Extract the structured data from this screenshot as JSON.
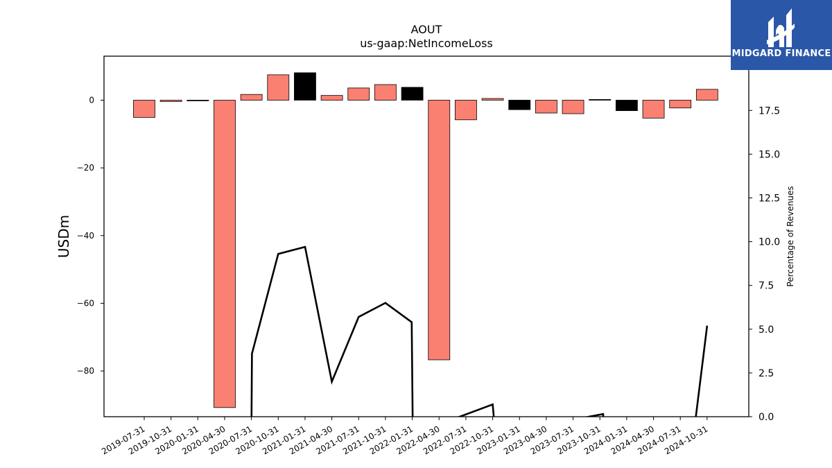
{
  "chart_data": {
    "type": "bar",
    "title": "AOUT",
    "subtitle": "us-gaap:NetIncomeLoss",
    "ylabel": "USDm",
    "ylabel_right": "Percentage of Revenues",
    "ylim": [
      -93.5,
      13
    ],
    "ylim_right": [
      0,
      20.6
    ],
    "yticks": [
      0,
      -20,
      -40,
      -60,
      -80
    ],
    "yticks_right": [
      "0.0",
      "2.5",
      "5.0",
      "7.5",
      "10.0",
      "12.5",
      "15.0",
      "17.5",
      "20.0"
    ],
    "categories": [
      "2019-07-31",
      "2019-10-31",
      "2020-01-31",
      "2020-04-30",
      "2020-07-31",
      "2020-10-31",
      "2021-01-31",
      "2021-04-30",
      "2021-07-31",
      "2021-10-31",
      "2022-01-31",
      "2022-04-30",
      "2022-07-31",
      "2022-10-31",
      "2023-01-31",
      "2023-04-30",
      "2023-07-31",
      "2023-10-31",
      "2024-01-31",
      "2024-04-30",
      "2024-07-31",
      "2024-10-31"
    ],
    "values": [
      -5.1,
      -0.4,
      -0.2,
      -90.8,
      1.7,
      7.5,
      8.1,
      1.4,
      3.6,
      4.6,
      3.8,
      -76.7,
      -5.8,
      0.5,
      -2.8,
      -3.8,
      -4.0,
      0.2,
      -3.1,
      -5.3,
      -2.3,
      3.2
    ],
    "colors": [
      "#fa8072",
      "#fa8072",
      "#000000",
      "#fa8072",
      "#fa8072",
      "#fa8072",
      "#000000",
      "#fa8072",
      "#fa8072",
      "#fa8072",
      "#000000",
      "#fa8072",
      "#fa8072",
      "#fa8072",
      "#000000",
      "#fa8072",
      "#fa8072",
      "#000000",
      "#000000",
      "#fa8072",
      "#fa8072",
      "#fa8072"
    ],
    "line": {
      "name": "Percentage of Revenues",
      "points": [
        [
          4,
          -1
        ],
        [
          4.02,
          3.6
        ],
        [
          5,
          9.3
        ],
        [
          6,
          9.7
        ],
        [
          7,
          2.0
        ],
        [
          8,
          5.7
        ],
        [
          9,
          6.5
        ],
        [
          9.98,
          5.4
        ],
        [
          10.02,
          -1
        ],
        [
          13.0,
          0.7
        ],
        [
          13.1,
          -1
        ],
        [
          17.12,
          0.15
        ],
        [
          17.16,
          -1
        ],
        [
          20.5,
          -1
        ],
        [
          21,
          5.2
        ]
      ]
    },
    "grid": false
  },
  "logo": {
    "text": "MIDGARD FINANCE",
    "bg": "#2b57a8"
  }
}
